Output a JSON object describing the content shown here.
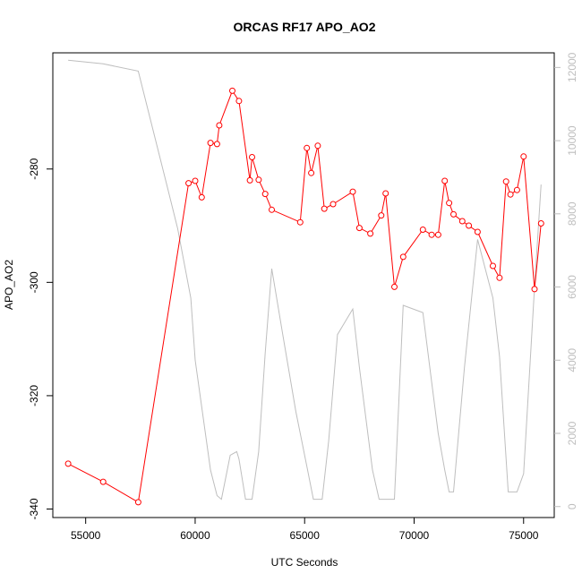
{
  "chart_data": {
    "type": "line",
    "title": "ORCAS RF17 APO_AO2",
    "xlabel": "UTC Seconds",
    "ylabel": "APO_AO2",
    "xlim": [
      53500,
      76400
    ],
    "ylim": [
      -341.5,
      -259.5
    ],
    "y2lim": [
      -300,
      12400
    ],
    "x_ticks": [
      55000,
      60000,
      65000,
      70000,
      75000
    ],
    "x_tick_labels": [
      "55000",
      "60000",
      "65000",
      "70000",
      "75000"
    ],
    "y_ticks": [
      -340,
      -320,
      -300,
      -280
    ],
    "y_tick_labels": [
      "-340",
      "-320",
      "-300",
      "-280"
    ],
    "y2_ticks": [
      0,
      2000,
      4000,
      6000,
      8000,
      10000,
      12000
    ],
    "y2_tick_labels": [
      "0",
      "2000",
      "4000",
      "6000",
      "8000",
      "10000",
      "12000"
    ],
    "grid": false,
    "colors": {
      "apo": "#ff0000",
      "altitude": "#bebebe"
    },
    "series": [
      {
        "axis": "left",
        "color": "#ff0000",
        "markers": "open-circle",
        "x": [
          54200,
          55800,
          57400,
          59700,
          60000,
          60300,
          60700,
          61000,
          61100,
          61700,
          62000,
          62500,
          62600,
          62900,
          63200,
          63500,
          64800,
          65100,
          65300,
          65600,
          65900,
          66300,
          67200,
          67500,
          68000,
          68500,
          68700,
          69100,
          69500,
          70400,
          70800,
          71100,
          71400,
          71600,
          71800,
          72200,
          72500,
          72900,
          73600,
          73900,
          74200,
          74400,
          74700,
          75000,
          75500,
          75800
        ],
        "y": [
          -332.0,
          -335.2,
          -338.8,
          -282.5,
          -282.1,
          -285.0,
          -275.4,
          -275.6,
          -272.3,
          -266.2,
          -268.0,
          -282.0,
          -277.9,
          -281.9,
          -284.4,
          -287.2,
          -289.4,
          -276.3,
          -280.7,
          -275.9,
          -287.0,
          -286.2,
          -284.0,
          -290.4,
          -291.4,
          -288.2,
          -284.3,
          -300.8,
          -295.5,
          -290.7,
          -291.6,
          -291.6,
          -282.1,
          -286.0,
          -288.0,
          -289.2,
          -290.0,
          -291.1,
          -297.1,
          -299.2,
          -282.2,
          -284.5,
          -283.7,
          -277.8,
          -301.2,
          -289.6
        ]
      },
      {
        "axis": "right",
        "color": "#bebebe",
        "markers": "none",
        "x": [
          54200,
          55800,
          57400,
          58200,
          58700,
          59200,
          59800,
          60000,
          60700,
          61000,
          61200,
          61600,
          61900,
          62000,
          62300,
          62600,
          62900,
          63200,
          63500,
          64000,
          64600,
          65100,
          65400,
          65600,
          65800,
          66100,
          66500,
          67000,
          67200,
          67500,
          68100,
          68400,
          68700,
          69100,
          69500,
          70400,
          70800,
          71100,
          71400,
          71600,
          71800,
          72300,
          72900,
          73600,
          73900,
          74300,
          74700,
          75000,
          75500,
          75800
        ],
        "y": [
          12200,
          12100,
          11900,
          10000,
          8800,
          7600,
          5700,
          4000,
          1000,
          300,
          200,
          1400,
          1500,
          1300,
          200,
          200,
          1500,
          4200,
          6500,
          4700,
          2600,
          1100,
          200,
          200,
          200,
          1800,
          4700,
          5200,
          5400,
          3800,
          1000,
          200,
          200,
          200,
          5500,
          5300,
          3400,
          2000,
          1000,
          400,
          400,
          3800,
          7300,
          5700,
          4100,
          400,
          400,
          900,
          6000,
          8800
        ]
      }
    ]
  }
}
